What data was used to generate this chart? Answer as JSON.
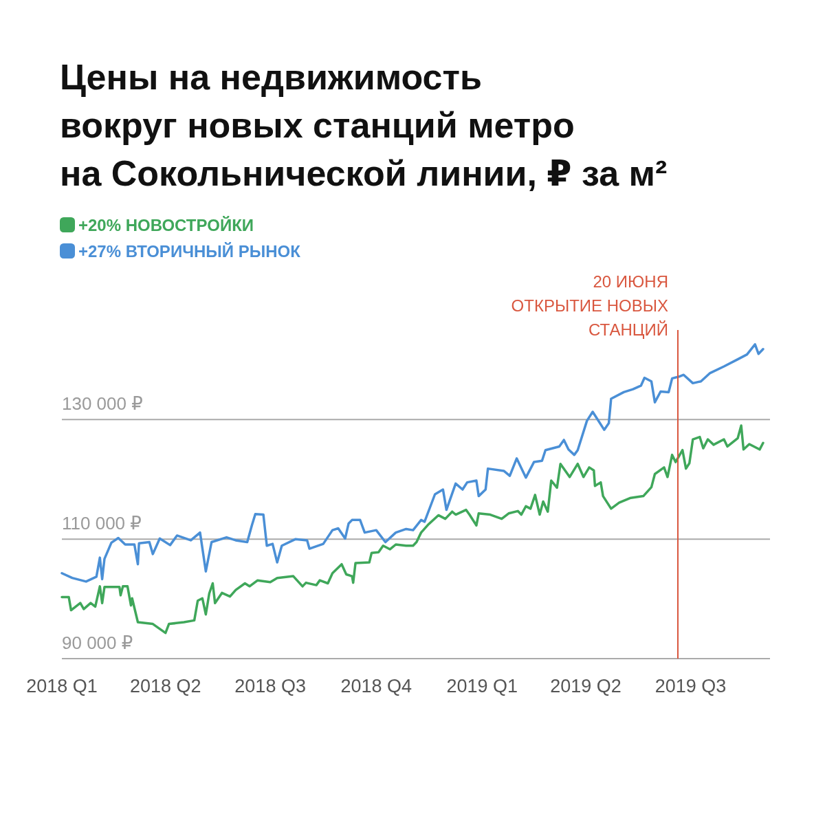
{
  "chart_data": {
    "type": "line",
    "title": "Цены на недвижимость\nвокруг новых станций метро\nна Сокольнической линии, ₽ за м²",
    "legend": "top left",
    "grid": "y",
    "marker": "none",
    "line_style": "solid",
    "xlim": [
      "2018-01-01",
      "2019-09-08"
    ],
    "xticks": [
      {
        "value": "2018-01-01",
        "label": "2018 Q1"
      },
      {
        "value": "2018-04-01",
        "label": "2018 Q2"
      },
      {
        "value": "2018-07-01",
        "label": "2018 Q3"
      },
      {
        "value": "2018-10-01",
        "label": "2018 Q4"
      },
      {
        "value": "2019-01-01",
        "label": "2019 Q1"
      },
      {
        "value": "2019-04-01",
        "label": "2019 Q2"
      },
      {
        "value": "2019-07-01",
        "label": "2019 Q3"
      }
    ],
    "ylim": [
      90000,
      145000
    ],
    "yticks": [
      {
        "value": 90000,
        "label": "90 000 ₽"
      },
      {
        "value": 110000,
        "label": "110 000 ₽"
      },
      {
        "value": 130000,
        "label": "130 000 ₽"
      }
    ],
    "ref_lines": [
      {
        "axis": "x",
        "value": "2019-06-20",
        "label": "20 ИЮНЯ\nОТКРЫТИЕ НОВЫХ\nСТАНЦИЙ",
        "color": "#d9573f"
      }
    ],
    "series": [
      {
        "name": "+20% НОВОСТРОЙКИ",
        "color": "#3fa75a",
        "x": [
          "2018-01-01",
          "2018-01-07",
          "2018-01-09",
          "2018-01-17",
          "2018-01-20",
          "2018-01-26",
          "2018-01-30",
          "2018-02-03",
          "2018-02-05",
          "2018-02-07",
          "2018-02-20",
          "2018-02-21",
          "2018-02-23",
          "2018-02-27",
          "2018-03-02",
          "2018-03-03",
          "2018-03-08",
          "2018-03-21",
          "2018-04-01",
          "2018-04-04",
          "2018-04-17",
          "2018-04-26",
          "2018-04-29",
          "2018-05-03",
          "2018-05-06",
          "2018-05-09",
          "2018-05-12",
          "2018-05-14",
          "2018-05-20",
          "2018-05-27",
          "2018-06-01",
          "2018-06-09",
          "2018-06-13",
          "2018-06-20",
          "2018-07-01",
          "2018-07-07",
          "2018-07-21",
          "2018-07-29",
          "2018-08-01",
          "2018-08-10",
          "2018-08-13",
          "2018-08-20",
          "2018-08-24",
          "2018-09-01",
          "2018-09-05",
          "2018-09-10",
          "2018-09-11",
          "2018-09-13",
          "2018-09-25",
          "2018-09-27",
          "2018-10-03",
          "2018-10-07",
          "2018-10-13",
          "2018-10-18",
          "2018-10-27",
          "2018-11-02",
          "2018-11-05",
          "2018-11-09",
          "2018-11-15",
          "2018-11-24",
          "2018-11-30",
          "2018-12-06",
          "2018-12-09",
          "2018-12-18",
          "2018-12-21",
          "2018-12-27",
          "2018-12-29",
          "2019-01-08",
          "2019-01-18",
          "2019-01-24",
          "2019-02-01",
          "2019-02-04",
          "2019-02-08",
          "2019-02-12",
          "2019-02-16",
          "2019-02-20",
          "2019-02-23",
          "2019-02-27",
          "2019-03-02",
          "2019-03-07",
          "2019-03-10",
          "2019-03-18",
          "2019-03-25",
          "2019-03-30",
          "2019-04-04",
          "2019-04-08",
          "2019-04-09",
          "2019-04-14",
          "2019-04-16",
          "2019-04-23",
          "2019-04-30",
          "2019-05-10",
          "2019-05-21",
          "2019-05-28",
          "2019-05-31",
          "2019-06-08",
          "2019-06-11",
          "2019-06-15",
          "2019-06-18",
          "2019-06-24",
          "2019-06-27",
          "2019-06-30",
          "2019-07-03",
          "2019-07-09",
          "2019-07-12",
          "2019-07-16",
          "2019-07-21",
          "2019-07-30",
          "2019-08-02",
          "2019-08-11",
          "2019-08-14",
          "2019-08-16",
          "2019-08-21",
          "2019-08-30",
          "2019-09-02"
        ],
        "values": [
          100300,
          100300,
          98100,
          99300,
          98300,
          99300,
          98700,
          102100,
          99300,
          102000,
          102000,
          100600,
          102100,
          102100,
          98900,
          100100,
          96100,
          95800,
          94300,
          95800,
          96100,
          96400,
          99700,
          100100,
          97400,
          100900,
          102600,
          99300,
          101000,
          100400,
          101500,
          102600,
          102100,
          103100,
          102800,
          103500,
          103800,
          102100,
          102700,
          102300,
          103100,
          102600,
          104300,
          105800,
          104100,
          103800,
          102700,
          106000,
          106100,
          107700,
          107800,
          108900,
          108300,
          109100,
          108900,
          108900,
          109500,
          111100,
          112400,
          114000,
          113400,
          114600,
          114100,
          114900,
          114100,
          112300,
          114300,
          114100,
          113400,
          114300,
          114700,
          114100,
          115500,
          115100,
          117400,
          114100,
          116300,
          114600,
          119800,
          118600,
          122600,
          120400,
          122600,
          120400,
          122000,
          121500,
          118900,
          119500,
          117200,
          115100,
          116100,
          116900,
          117200,
          118700,
          120900,
          122000,
          120400,
          124100,
          122900,
          124900,
          121800,
          122700,
          126700,
          127100,
          125200,
          126700,
          125800,
          126700,
          125500,
          126900,
          129000,
          125000,
          125900,
          125000,
          126100
        ]
      },
      {
        "name": "+27% ВТОРИЧНЫЙ РЫНОК",
        "color": "#4a8fd6",
        "x": [
          "2018-01-01",
          "2018-01-10",
          "2018-01-22",
          "2018-01-31",
          "2018-02-03",
          "2018-02-05",
          "2018-02-07",
          "2018-02-13",
          "2018-02-19",
          "2018-02-25",
          "2018-03-05",
          "2018-03-08",
          "2018-03-09",
          "2018-03-18",
          "2018-03-21",
          "2018-03-27",
          "2018-04-05",
          "2018-04-11",
          "2018-04-23",
          "2018-05-01",
          "2018-05-06",
          "2018-05-11",
          "2018-05-24",
          "2018-06-01",
          "2018-06-11",
          "2018-06-15",
          "2018-06-18",
          "2018-06-25",
          "2018-06-28",
          "2018-07-03",
          "2018-07-07",
          "2018-07-11",
          "2018-07-23",
          "2018-08-02",
          "2018-08-04",
          "2018-08-16",
          "2018-08-24",
          "2018-08-29",
          "2018-09-04",
          "2018-09-07",
          "2018-09-10",
          "2018-09-17",
          "2018-09-21",
          "2018-10-01",
          "2018-10-09",
          "2018-10-18",
          "2018-10-27",
          "2018-11-02",
          "2018-11-09",
          "2018-11-12",
          "2018-11-21",
          "2018-11-28",
          "2018-12-01",
          "2018-12-09",
          "2018-12-15",
          "2018-12-19",
          "2018-12-27",
          "2018-12-29",
          "2019-01-04",
          "2019-01-06",
          "2019-01-20",
          "2019-01-25",
          "2019-01-31",
          "2019-02-08",
          "2019-02-15",
          "2019-02-22",
          "2019-02-25",
          "2019-03-09",
          "2019-03-13",
          "2019-03-17",
          "2019-03-22",
          "2019-03-25",
          "2019-04-02",
          "2019-04-07",
          "2019-04-17",
          "2019-04-21",
          "2019-04-23",
          "2019-05-04",
          "2019-05-12",
          "2019-05-19",
          "2019-05-22",
          "2019-05-28",
          "2019-05-31",
          "2019-06-05",
          "2019-06-12",
          "2019-06-15",
          "2019-06-21",
          "2019-06-25",
          "2019-07-03",
          "2019-07-10",
          "2019-07-18",
          "2019-07-30",
          "2019-08-11",
          "2019-08-19",
          "2019-08-26",
          "2019-08-29",
          "2019-09-02"
        ],
        "values": [
          104300,
          103500,
          102900,
          103700,
          106900,
          103300,
          106700,
          109400,
          110200,
          109100,
          109100,
          105800,
          109300,
          109500,
          107500,
          110100,
          109000,
          110600,
          109800,
          111100,
          104600,
          109500,
          110300,
          109800,
          109500,
          112300,
          114200,
          114100,
          108900,
          109200,
          106100,
          108900,
          110000,
          109800,
          108400,
          109200,
          111500,
          111800,
          110100,
          112600,
          113200,
          113200,
          111100,
          111500,
          109500,
          111100,
          111700,
          111500,
          113200,
          112900,
          117500,
          118300,
          114900,
          119300,
          118300,
          119500,
          119800,
          117200,
          118300,
          121800,
          121400,
          120600,
          123500,
          120300,
          122900,
          123100,
          124900,
          125500,
          126600,
          125000,
          124100,
          124900,
          129800,
          131300,
          128300,
          129400,
          133500,
          134600,
          135100,
          135700,
          137000,
          136400,
          132900,
          134700,
          134600,
          136900,
          137200,
          137500,
          136100,
          136400,
          137800,
          138900,
          140100,
          140900,
          142600,
          141000,
          141800
        ]
      }
    ]
  }
}
